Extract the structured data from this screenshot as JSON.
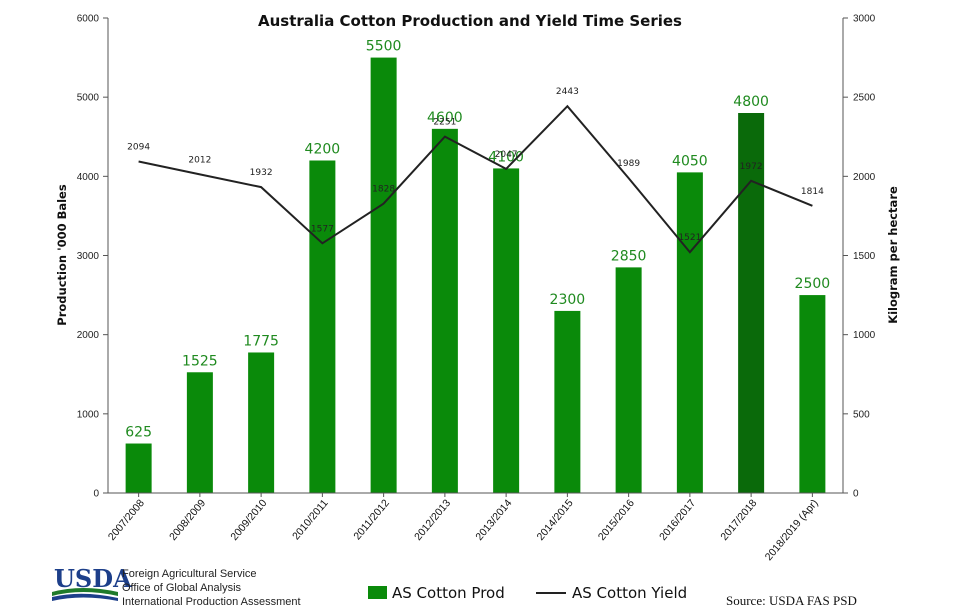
{
  "chart_data": {
    "type": "bar",
    "title": "Australia Cotton Production and Yield Time Series",
    "xlabel": "",
    "ylabel": "Production '000 Bales",
    "y2label": "Kilogram per hectare",
    "categories": [
      "2007/2008",
      "2008/2009",
      "2009/2010",
      "2010/2011",
      "2011/2012",
      "2012/2013",
      "2013/2014",
      "2014/2015",
      "2015/2016",
      "2016/2017",
      "2017/2018",
      "2018/2019 (Apr)"
    ],
    "series": [
      {
        "name": "AS Cotton Prod",
        "kind": "bar",
        "axis": "left",
        "color": "#0a8a0a",
        "values": [
          625,
          1525,
          1775,
          4200,
          5500,
          4600,
          4100,
          2300,
          2850,
          4050,
          4800,
          2500
        ]
      },
      {
        "name": "AS Cotton Yield",
        "kind": "line",
        "axis": "right",
        "color": "#222222",
        "values": [
          2094,
          2012,
          1932,
          1577,
          1828,
          2251,
          2047,
          2443,
          1989,
          1521,
          1972,
          1814
        ]
      }
    ],
    "highlight_color": "#0a6a0a",
    "highlight_index": 10,
    "ylim": [
      0,
      6000
    ],
    "y2lim": [
      0,
      3000
    ],
    "yticks": [
      "0",
      "1000",
      "2000",
      "3000",
      "4000",
      "5000",
      "6000"
    ],
    "y2ticks": [
      "0",
      "500",
      "1000",
      "1500",
      "2000",
      "2500",
      "3000"
    ],
    "legend_position": "bottom",
    "grid": false
  },
  "footer": {
    "logo": "USDA",
    "agency_lines": [
      "Foreign Agricultural Service",
      "Office of Global Analysis",
      "International Production Assessment"
    ],
    "source": "Source: USDA FAS PSD"
  }
}
